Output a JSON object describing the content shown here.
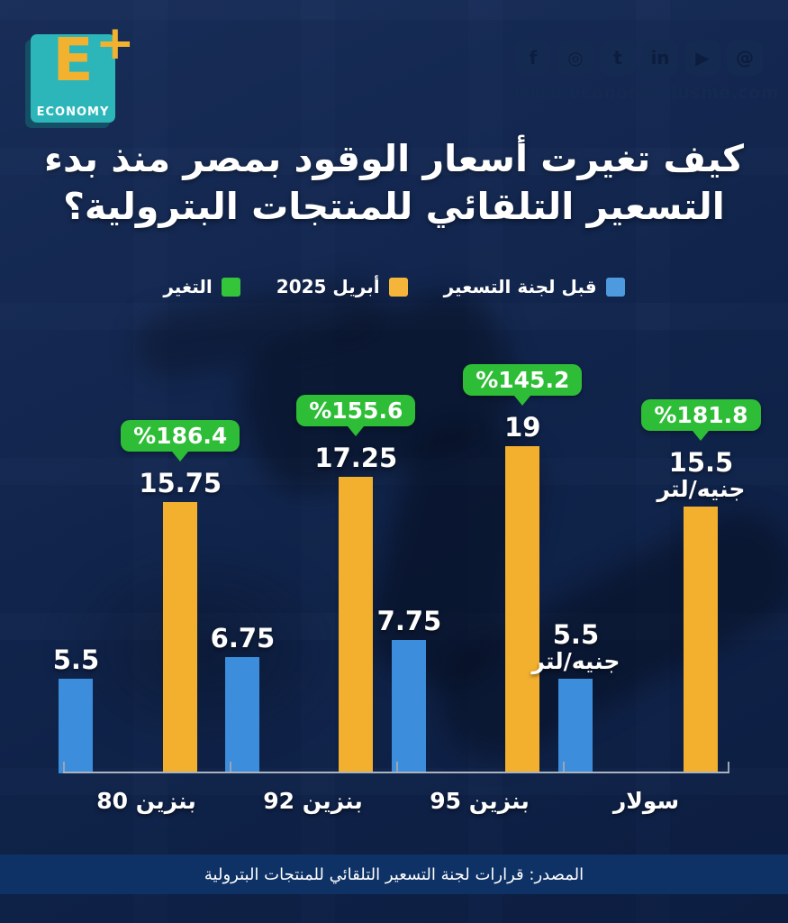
{
  "brand": {
    "logo_letter": "E",
    "logo_plus": "+",
    "logo_word": "ECONOMY",
    "website": "www.economyplusme.com",
    "social_icons": [
      {
        "name": "facebook-icon",
        "glyph": "f"
      },
      {
        "name": "instagram-icon",
        "glyph": "◎"
      },
      {
        "name": "twitter-icon",
        "glyph": "t"
      },
      {
        "name": "linkedin-icon",
        "glyph": "in"
      },
      {
        "name": "youtube-icon",
        "glyph": "▶"
      },
      {
        "name": "threads-icon",
        "glyph": "@"
      }
    ]
  },
  "title": {
    "line1": "كيف تغيرت أسعار الوقود بمصر منذ بدء",
    "line2": "التسعير التلقائي للمنتجات البترولية؟"
  },
  "legend": {
    "items": [
      {
        "label": "قبل لجنة التسعير",
        "color": "#4D9BDE"
      },
      {
        "label": "أبريل 2025",
        "color": "#F5B43A"
      },
      {
        "label": "التغير",
        "color": "#35C53A"
      }
    ]
  },
  "chart_data": {
    "type": "bar",
    "title": "كيف تغيرت أسعار الوقود بمصر منذ بدء التسعير التلقائي للمنتجات البترولية؟",
    "categories": [
      "بنزين 80",
      "بنزين 92",
      "بنزين 95",
      "سولار"
    ],
    "series": [
      {
        "name": "قبل لجنة التسعير",
        "color": "#3C8EDD",
        "values": [
          5.5,
          6.75,
          7.75,
          5.5
        ]
      },
      {
        "name": "أبريل 2025",
        "color": "#F3B02E",
        "values": [
          15.75,
          17.25,
          19,
          15.5
        ]
      }
    ],
    "change_percent": {
      "name": "التغير",
      "color": "#2EBD36",
      "labels": [
        "%186.4",
        "%155.6",
        "%145.2",
        "%181.8"
      ]
    },
    "unit": "جنيه/لتر",
    "ylim": [
      0,
      20
    ],
    "grid": false,
    "legend_position": "top",
    "groups": [
      {
        "category": "بنزين 80",
        "before_value": 5.5,
        "before_label": "5.5",
        "before_unit": "",
        "april_value": 15.75,
        "april_label": "15.75",
        "april_unit": "",
        "change": "%186.4"
      },
      {
        "category": "بنزين 92",
        "before_value": 6.75,
        "before_label": "6.75",
        "before_unit": "",
        "april_value": 17.25,
        "april_label": "17.25",
        "april_unit": "",
        "change": "%155.6"
      },
      {
        "category": "بنزين 95",
        "before_value": 7.75,
        "before_label": "7.75",
        "before_unit": "",
        "april_value": 19,
        "april_label": "19",
        "april_unit": "",
        "change": "%145.2"
      },
      {
        "category": "سولار",
        "before_value": 5.5,
        "before_label": "5.5",
        "before_unit": "جنيه/لتر",
        "april_value": 15.5,
        "april_label": "15.5",
        "april_unit": "جنيه/لتر",
        "change": "%181.8"
      }
    ]
  },
  "source": {
    "text": "المصدر: قرارات لجنة التسعير التلقائي للمنتجات البترولية"
  },
  "colors": {
    "background": "#122650",
    "bar_before": "#3C8EDD",
    "bar_april": "#F3B02E",
    "badge_green": "#2EBD36",
    "source_band": "#0E3166",
    "logo_teal": "#2CB6BA",
    "logo_yellow": "#F2B22F",
    "axis": "#AAB3C0"
  }
}
